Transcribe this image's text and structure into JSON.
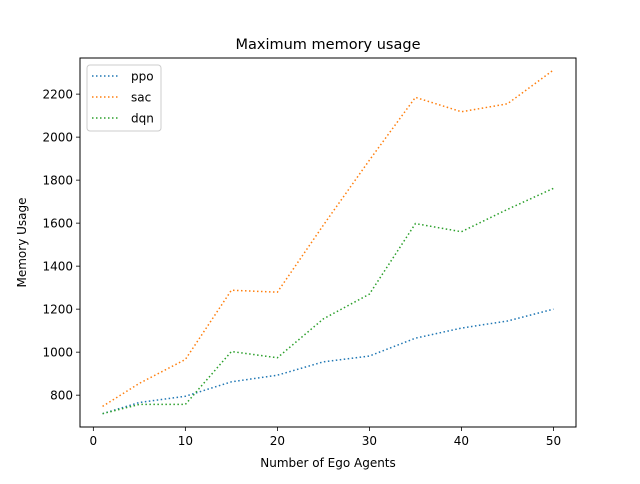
{
  "chart_data": {
    "type": "line",
    "title": "Maximum memory usage",
    "xlabel": "Number of Ego Agents",
    "ylabel": "Memory Usage",
    "xlim": [
      -1.45,
      52.45
    ],
    "ylim": [
      652,
      2368
    ],
    "xticks": [
      0,
      10,
      20,
      30,
      40,
      50
    ],
    "yticks": [
      800,
      1000,
      1200,
      1400,
      1600,
      1800,
      2000,
      2200
    ],
    "x": [
      1,
      5,
      10,
      15,
      20,
      25,
      30,
      35,
      40,
      45,
      50
    ],
    "series": [
      {
        "name": "ppo",
        "color": "#1f77b4",
        "values": [
          714,
          766,
          795,
          862,
          893,
          955,
          982,
          1065,
          1112,
          1145,
          1200
        ]
      },
      {
        "name": "sac",
        "color": "#ff7f0e",
        "values": [
          748,
          855,
          966,
          1288,
          1279,
          1591,
          1893,
          2185,
          2118,
          2155,
          2312
        ]
      },
      {
        "name": "dqn",
        "color": "#2ca02c",
        "values": [
          714,
          757,
          757,
          1003,
          974,
          1155,
          1270,
          1598,
          1560,
          1664,
          1762
        ]
      }
    ],
    "line_style": "dotted",
    "grid": false,
    "legend_position": "top-left"
  }
}
